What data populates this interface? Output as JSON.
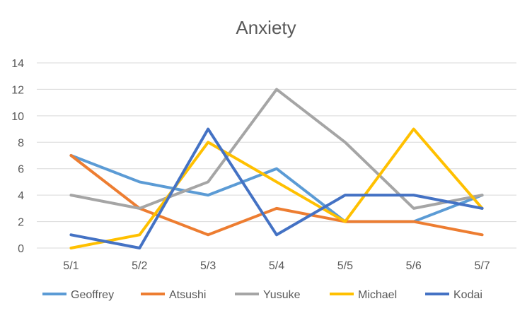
{
  "chart_data": {
    "type": "line",
    "title": "Anxiety",
    "categories": [
      "5/1",
      "5/2",
      "5/3",
      "5/4",
      "5/5",
      "5/6",
      "5/7"
    ],
    "ylim": [
      0,
      14
    ],
    "yticks": [
      0,
      2,
      4,
      6,
      8,
      10,
      12,
      14
    ],
    "grid": true,
    "legend_position": "bottom",
    "series": [
      {
        "name": "Geoffrey",
        "color": "#5b9bd5",
        "values": [
          7,
          5,
          4,
          6,
          2,
          2,
          4
        ]
      },
      {
        "name": "Atsushi",
        "color": "#ed7d31",
        "values": [
          7,
          3,
          1,
          3,
          2,
          2,
          1
        ]
      },
      {
        "name": "Yusuke",
        "color": "#a5a5a5",
        "values": [
          4,
          3,
          5,
          12,
          8,
          3,
          4
        ]
      },
      {
        "name": "Michael",
        "color": "#ffc000",
        "values": [
          0,
          1,
          8,
          5,
          2,
          9,
          3
        ]
      },
      {
        "name": "Kodai",
        "color": "#4472c4",
        "values": [
          1,
          0,
          9,
          1,
          4,
          4,
          3
        ]
      }
    ]
  }
}
